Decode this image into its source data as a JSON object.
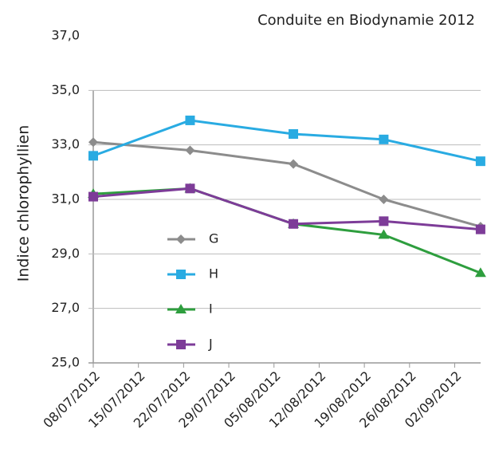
{
  "chart_data": {
    "type": "line",
    "title": "Conduite en Biodynamie 2012",
    "y_label": "Indice chlorophyllien",
    "x": [
      "08/07/2012",
      "23/07/2012",
      "08/08/2012",
      "22/08/2012",
      "06/09/2012"
    ],
    "xlim": [
      "08/07/2012",
      "07/09/2012"
    ],
    "xticks": [
      "08/07/2012",
      "15/07/2012",
      "22/07/2012",
      "29/07/2012",
      "05/08/2012",
      "12/08/2012",
      "19/08/2012",
      "26/08/2012",
      "02/09/2012"
    ],
    "ylim": [
      25,
      37
    ],
    "yticks": [
      {
        "value": 25,
        "label": "25,0"
      },
      {
        "value": 27,
        "label": "27,0"
      },
      {
        "value": 29,
        "label": "29,0"
      },
      {
        "value": 31,
        "label": "31,0"
      },
      {
        "value": 33,
        "label": "33,0"
      },
      {
        "value": 35,
        "label": "35,0"
      },
      {
        "value": 37,
        "label": "37,0"
      }
    ],
    "grid": true,
    "legend": "left",
    "series": [
      {
        "name": "G",
        "color": "#8c8c8c",
        "marker": "diamond",
        "values": [
          33.1,
          32.8,
          32.3,
          31.0,
          30.0
        ]
      },
      {
        "name": "H",
        "color": "#29abe2",
        "marker": "square",
        "values": [
          32.6,
          33.9,
          33.4,
          33.2,
          32.4
        ]
      },
      {
        "name": "I",
        "color": "#2e9e3e",
        "marker": "triangle",
        "values": [
          31.2,
          31.4,
          30.1,
          29.7,
          28.3
        ]
      },
      {
        "name": "J",
        "color": "#7d3c98",
        "marker": "square",
        "values": [
          31.1,
          31.4,
          30.1,
          30.2,
          29.9
        ]
      }
    ]
  }
}
